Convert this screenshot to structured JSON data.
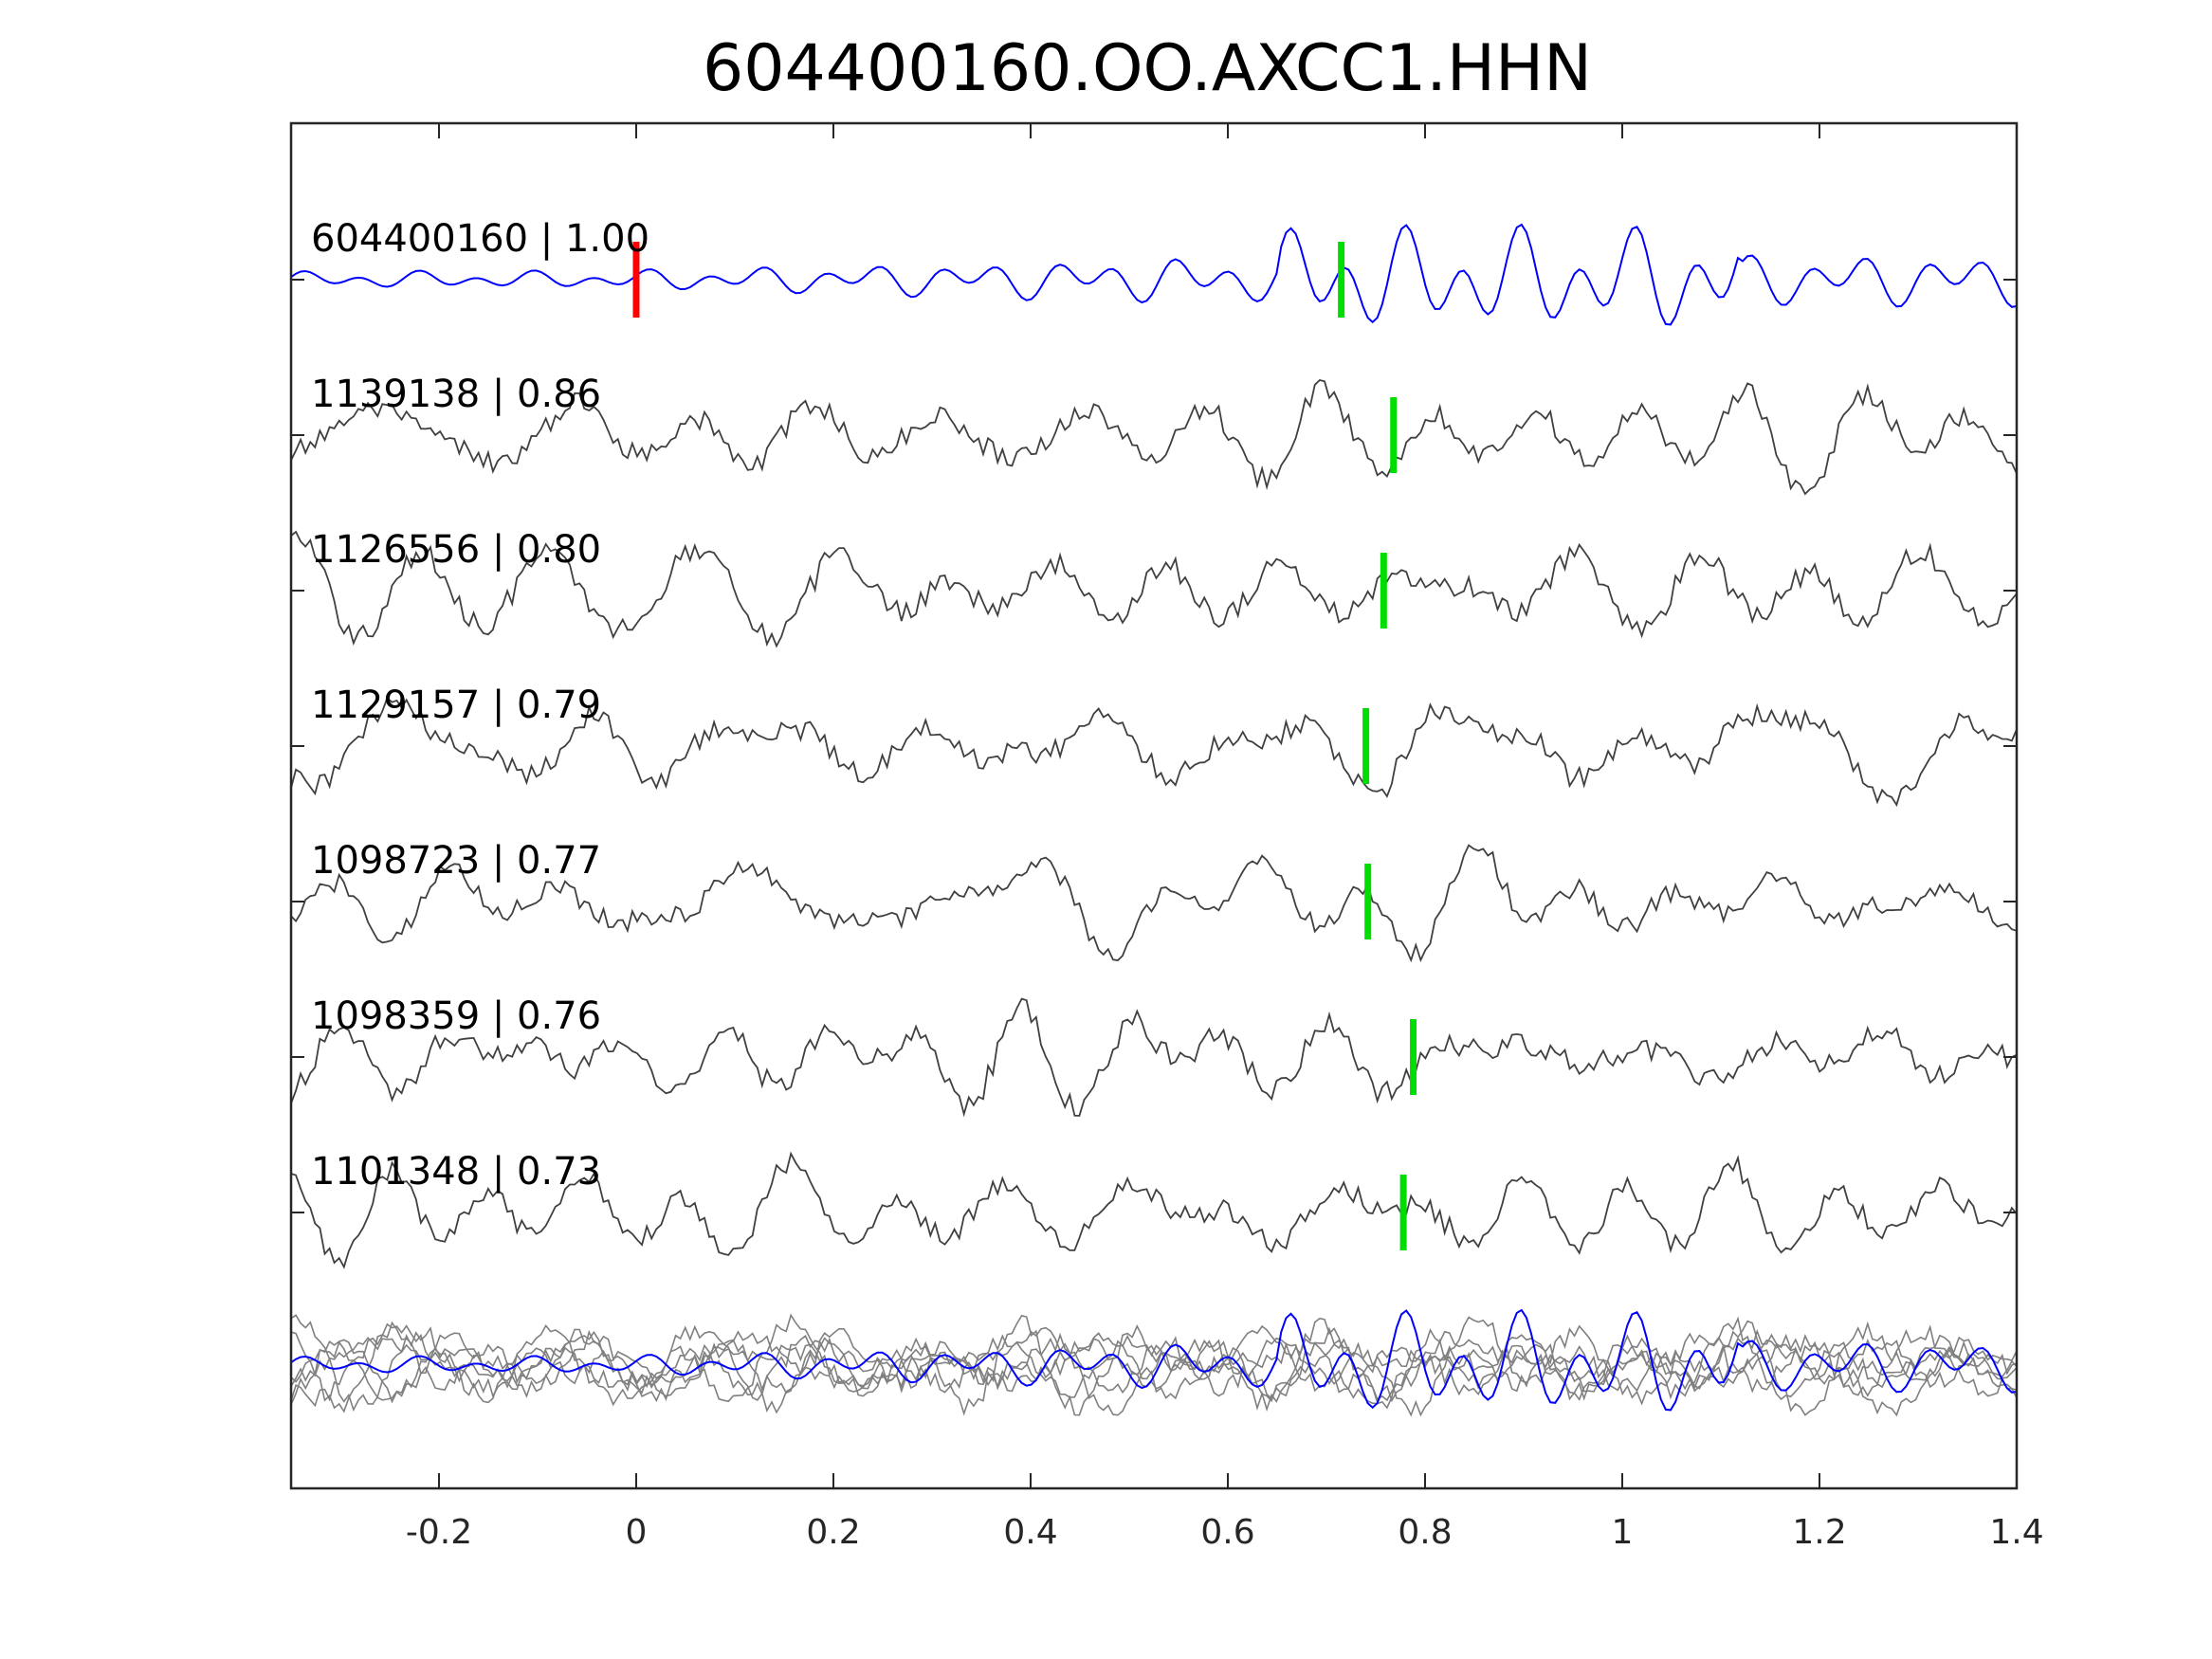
{
  "chart_data": {
    "type": "line",
    "title": "604400160.OO.AXCC1.HHN",
    "xlabel": "",
    "ylabel": "",
    "xlim": [
      -0.35,
      1.4
    ],
    "xticks": [
      -0.2,
      0,
      0.2,
      0.4,
      0.6,
      0.8,
      1,
      1.2,
      1.4
    ],
    "xtick_labels": [
      "-0.2",
      "0",
      "0.2",
      "0.4",
      "0.6",
      "0.8",
      "1",
      "1.2",
      "1.4"
    ],
    "grid": false,
    "reference_pick": {
      "time": 0.0,
      "color": "#ff0000"
    },
    "colors": {
      "template": "#0000ff",
      "match": "#404040",
      "stack": "#808080",
      "pick": "#00dd00"
    },
    "series": [
      {
        "label": "604400160 | 1.00",
        "id": "604400160",
        "cc": 1.0,
        "pick": 0.715,
        "template": true
      },
      {
        "label": "1139138 | 0.86",
        "id": "1139138",
        "cc": 0.86,
        "pick": 0.768
      },
      {
        "label": "1126556 | 0.80",
        "id": "1126556",
        "cc": 0.8,
        "pick": 0.758
      },
      {
        "label": "1129157 | 0.79",
        "id": "1129157",
        "cc": 0.79,
        "pick": 0.74
      },
      {
        "label": "1098723 | 0.77",
        "id": "1098723",
        "cc": 0.77,
        "pick": 0.742
      },
      {
        "label": "1098359 | 0.76",
        "id": "1098359",
        "cc": 0.76,
        "pick": 0.788
      },
      {
        "label": "1101348 | 0.73",
        "id": "1101348",
        "cc": 0.73,
        "pick": 0.778
      }
    ]
  }
}
